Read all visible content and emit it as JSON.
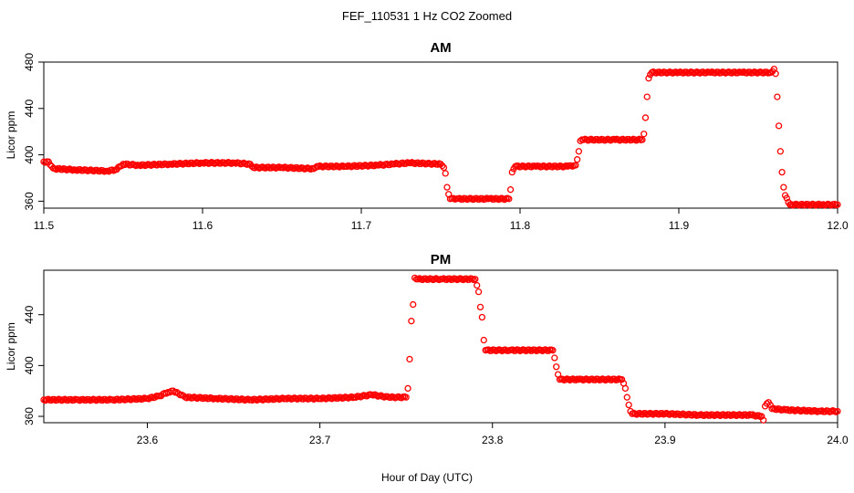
{
  "figure": {
    "title": "FEF_110531  1 Hz CO2 Zoomed",
    "xlabel": "Hour of Day (UTC)"
  },
  "chart_data": [
    {
      "type": "scatter",
      "title": "AM",
      "xlabel": "Hour of Day (UTC)",
      "ylabel": "Licor ppm",
      "xlim": [
        11.5,
        12.0
      ],
      "ylim": [
        354,
        480
      ],
      "xticks": [
        11.5,
        11.6,
        11.7,
        11.8,
        11.9,
        12.0
      ],
      "xtick_labels": [
        "11.5",
        "11.6",
        "11.7",
        "11.8",
        "11.9",
        "12.0"
      ],
      "yticks": [
        360,
        400,
        440,
        480
      ],
      "ytick_labels": [
        "360",
        "400",
        "440",
        "480"
      ],
      "marker_color": "#ff0000",
      "grid": false,
      "series": [
        {
          "x": [
            11.5,
            11.503,
            11.505,
            11.507,
            11.52,
            11.54,
            11.545,
            11.548,
            11.55,
            11.56,
            11.58,
            11.6,
            11.62,
            11.63,
            11.632,
            11.65,
            11.67,
            11.672,
            11.69,
            11.71,
            11.72,
            11.73,
            11.75,
            11.752,
            11.753,
            11.754,
            11.755,
            11.756,
            11.76,
            11.78,
            11.793,
            11.794,
            11.795,
            11.797,
            11.81,
            11.83,
            11.835,
            11.836,
            11.837,
            11.838,
            11.84,
            11.86,
            11.877,
            11.878,
            11.879,
            11.88,
            11.881,
            11.883,
            11.9,
            11.92,
            11.94,
            11.958,
            11.959,
            11.96,
            11.961,
            11.962,
            11.963,
            11.964,
            11.965,
            11.966,
            11.967,
            11.97,
            11.99,
            12.0
          ],
          "y": [
            394,
            394,
            390,
            388,
            387,
            386,
            387,
            390,
            392,
            391,
            392,
            393,
            393,
            392,
            389,
            389,
            388,
            390,
            390,
            391,
            392,
            393,
            392,
            389,
            384,
            372,
            366,
            362,
            362,
            362,
            362,
            370,
            385,
            390,
            390,
            390,
            391,
            396,
            403,
            412,
            413,
            413,
            413,
            418,
            432,
            450,
            466,
            471,
            471,
            471,
            471,
            471,
            472,
            474,
            470,
            450,
            425,
            403,
            385,
            372,
            365,
            357,
            357,
            357
          ]
        }
      ]
    },
    {
      "type": "scatter",
      "title": "PM",
      "xlabel": "Hour of Day (UTC)",
      "ylabel": "Licor ppm",
      "xlim": [
        23.54,
        24.0
      ],
      "ylim": [
        355,
        475
      ],
      "xticks": [
        23.6,
        23.7,
        23.8,
        23.9,
        24.0
      ],
      "xtick_labels": [
        "23.6",
        "23.7",
        "23.8",
        "23.9",
        "24.0"
      ],
      "yticks": [
        360,
        400,
        440
      ],
      "ytick_labels": [
        "360",
        "400",
        "440"
      ],
      "marker_color": "#ff0000",
      "grid": false,
      "series": [
        {
          "x": [
            23.54,
            23.56,
            23.58,
            23.6,
            23.607,
            23.612,
            23.615,
            23.618,
            23.622,
            23.64,
            23.66,
            23.68,
            23.7,
            23.72,
            23.73,
            23.74,
            23.75,
            23.751,
            23.752,
            23.753,
            23.754,
            23.755,
            23.756,
            23.77,
            23.79,
            23.792,
            23.793,
            23.794,
            23.795,
            23.796,
            23.81,
            23.835,
            23.836,
            23.837,
            23.838,
            23.839,
            23.85,
            23.875,
            23.876,
            23.877,
            23.878,
            23.879,
            23.88,
            23.881,
            23.9,
            23.92,
            23.95,
            23.956,
            23.957,
            23.958,
            23.96,
            23.962,
            23.97,
            23.99,
            24.0
          ],
          "y": [
            373,
            373,
            373,
            374,
            376,
            379,
            380,
            378,
            375,
            374,
            373,
            374,
            374,
            375,
            377,
            375,
            375,
            382,
            405,
            435,
            448,
            469,
            468,
            468,
            468,
            458,
            446,
            438,
            420,
            412,
            412,
            412,
            406,
            399,
            393,
            389,
            389,
            389,
            386,
            382,
            375,
            369,
            364,
            362,
            362,
            361,
            361,
            360,
            357,
            368,
            371,
            366,
            365,
            364,
            364
          ]
        }
      ]
    }
  ]
}
